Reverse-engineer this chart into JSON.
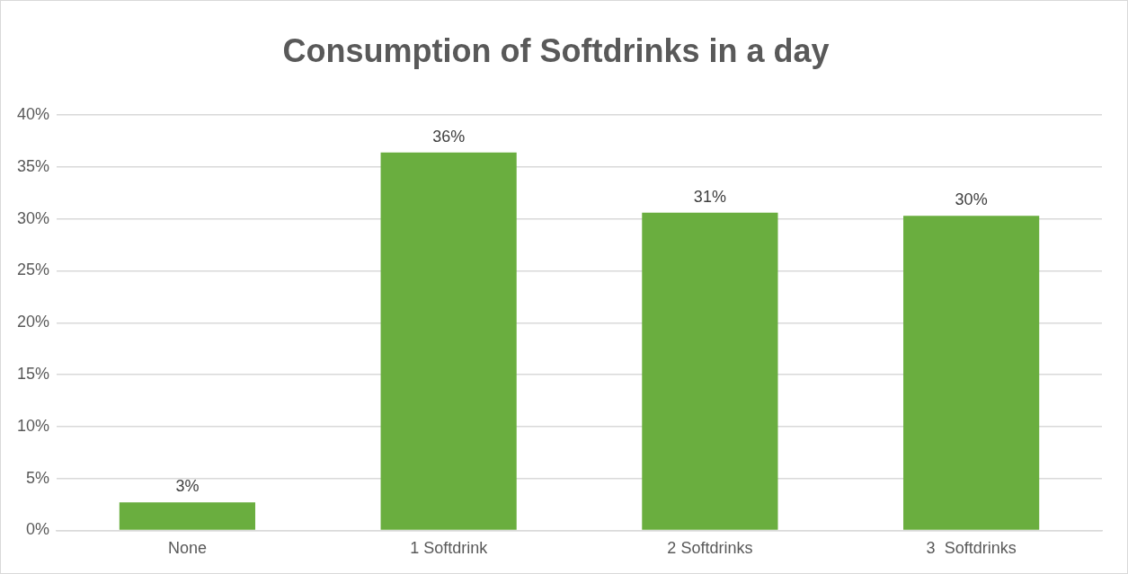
{
  "chart_data": {
    "type": "bar",
    "title": "Consumption of Softdrinks in a day",
    "categories": [
      "None",
      "1 Softdrink",
      "2 Softdrinks",
      "3  Softdrinks"
    ],
    "values": [
      2.7,
      36.4,
      30.6,
      30.3
    ],
    "value_labels": [
      "3%",
      "36%",
      "31%",
      "30%"
    ],
    "color": "#6aae3f",
    "ylim": [
      0,
      40
    ],
    "yticks": [
      {
        "value": 0,
        "label": "0%"
      },
      {
        "value": 5,
        "label": "5%"
      },
      {
        "value": 10,
        "label": "10%"
      },
      {
        "value": 15,
        "label": "15%"
      },
      {
        "value": 20,
        "label": "20%"
      },
      {
        "value": 25,
        "label": "25%"
      },
      {
        "value": 30,
        "label": "30%"
      },
      {
        "value": 35,
        "label": "35%"
      },
      {
        "value": 40,
        "label": "40%"
      }
    ],
    "grid": "y"
  }
}
